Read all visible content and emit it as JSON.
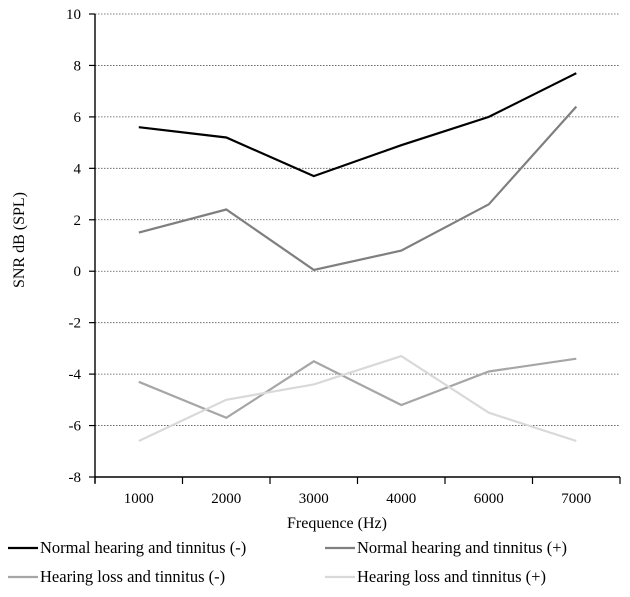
{
  "chart_data": {
    "type": "line",
    "title": "",
    "xlabel": "Frequence (Hz)",
    "ylabel": "SNR dB (SPL)",
    "categories": [
      "1000",
      "2000",
      "3000",
      "4000",
      "6000",
      "7000"
    ],
    "yticks": [
      "10",
      "8",
      "6",
      "4",
      "2",
      "0",
      "-2",
      "-4",
      "-6",
      "-8"
    ],
    "ylim": [
      -8,
      10
    ],
    "grid": true,
    "legend_position": "bottom",
    "series": [
      {
        "name": "Normal hearing and tinnitus (-)",
        "color": "#000000",
        "values": [
          5.6,
          5.2,
          3.7,
          4.9,
          6.0,
          7.7
        ]
      },
      {
        "name": "Normal hearing and tinnitus (+)",
        "color": "#7f7f7f",
        "values": [
          1.5,
          2.4,
          0.05,
          0.8,
          2.6,
          6.4
        ]
      },
      {
        "name": "Hearing loss and tinnitus (-)",
        "color": "#a6a6a6",
        "values": [
          -4.3,
          -5.7,
          -3.5,
          -5.2,
          -3.9,
          -3.4
        ]
      },
      {
        "name": "Hearing loss and tinnitus (+)",
        "color": "#d9d9d9",
        "values": [
          -6.6,
          -5.0,
          -4.4,
          -3.3,
          -5.5,
          -6.6
        ]
      }
    ]
  }
}
